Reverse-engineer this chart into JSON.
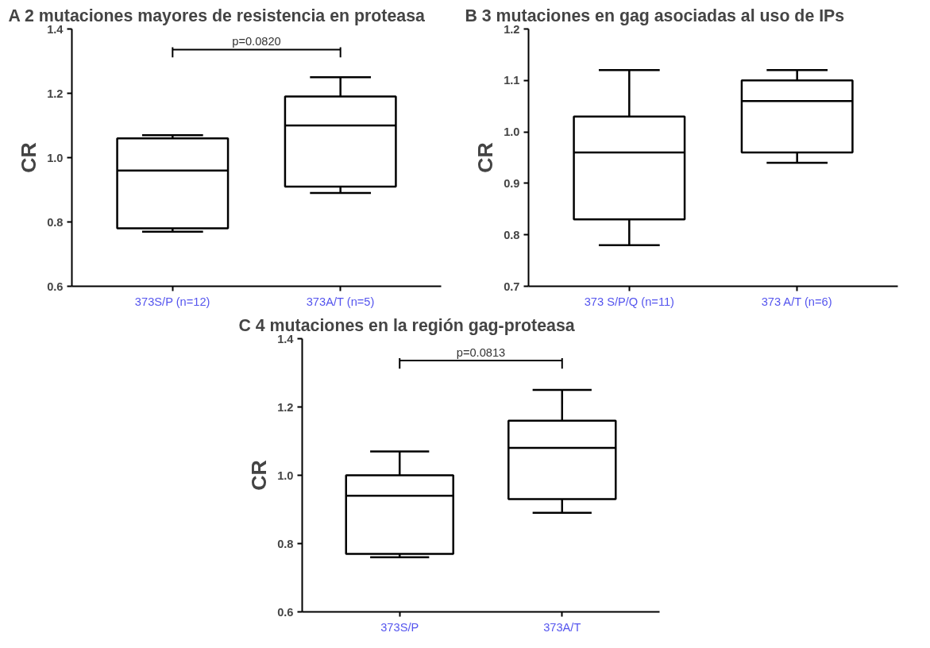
{
  "chart_data": [
    {
      "type": "box",
      "title": "A  2 mutaciones  mayores de resistencia en proteasa",
      "ylabel": "CR",
      "categories": [
        "373S/P (n=12)",
        "373A/T (n=5)"
      ],
      "color": "#ffffff",
      "boxes": [
        {
          "low": 0.77,
          "q1": 0.78,
          "median": 0.96,
          "q3": 1.06,
          "high": 1.07
        },
        {
          "low": 0.89,
          "q1": 0.91,
          "median": 1.1,
          "q3": 1.19,
          "high": 1.25
        }
      ],
      "ylim": [
        0.6,
        1.4
      ],
      "yticks": [
        {
          "value": 0.6,
          "label": "0.6"
        },
        {
          "value": 0.8,
          "label": "0.8"
        },
        {
          "value": 1.0,
          "label": "1.0"
        },
        {
          "value": 1.2,
          "label": "1.2"
        },
        {
          "value": 1.4,
          "label": "1.4"
        }
      ],
      "annotations": [
        "p=0.0820"
      ],
      "grid": false
    },
    {
      "type": "box",
      "title": "B  3 mutaciones  en gag asociadas al uso de IPs",
      "ylabel": "CR",
      "categories": [
        "373 S/P/Q (n=11)",
        "373 A/T (n=6)"
      ],
      "color": "#ffffff",
      "boxes": [
        {
          "low": 0.78,
          "q1": 0.83,
          "median": 0.96,
          "q3": 1.03,
          "high": 1.12
        },
        {
          "low": 0.94,
          "q1": 0.96,
          "median": 1.06,
          "q3": 1.1,
          "high": 1.12
        }
      ],
      "ylim": [
        0.7,
        1.2
      ],
      "yticks": [
        {
          "value": 0.7,
          "label": "0.7"
        },
        {
          "value": 0.8,
          "label": "0.8"
        },
        {
          "value": 0.9,
          "label": "0.9"
        },
        {
          "value": 1.0,
          "label": "1.0"
        },
        {
          "value": 1.1,
          "label": "1.1"
        },
        {
          "value": 1.2,
          "label": "1.2"
        }
      ],
      "grid": false
    },
    {
      "type": "box",
      "title": "C  4 mutaciones en la región gag-proteasa",
      "ylabel": "CR",
      "categories": [
        "373S/P",
        "373A/T"
      ],
      "color": "#ffffff",
      "boxes": [
        {
          "low": 0.76,
          "q1": 0.77,
          "median": 0.94,
          "q3": 1.0,
          "high": 1.07
        },
        {
          "low": 0.89,
          "q1": 0.93,
          "median": 1.08,
          "q3": 1.16,
          "high": 1.25
        }
      ],
      "ylim": [
        0.6,
        1.4
      ],
      "yticks": [
        {
          "value": 0.6,
          "label": "0.6"
        },
        {
          "value": 0.8,
          "label": "0.8"
        },
        {
          "value": 1.0,
          "label": "1.0"
        },
        {
          "value": 1.2,
          "label": "1.2"
        },
        {
          "value": 1.4,
          "label": "1.4"
        }
      ],
      "annotations": [
        "p=0.0813"
      ],
      "grid": false
    }
  ]
}
